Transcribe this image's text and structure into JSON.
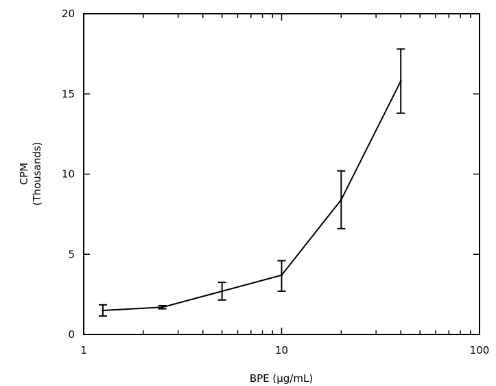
{
  "chart_data": {
    "type": "line",
    "xlabel": "BPE (µg/mL)",
    "ylabel": [
      "CPM",
      "(Thousands)"
    ],
    "xscale": "log",
    "xlim": [
      1,
      100
    ],
    "ylim": [
      0,
      20
    ],
    "x_ticks": [
      1,
      10,
      100
    ],
    "x_tick_labels": [
      "1",
      "10",
      "100"
    ],
    "y_ticks": [
      0,
      5,
      10,
      15,
      20
    ],
    "y_tick_labels": [
      "0",
      "5",
      "10",
      "15",
      "20"
    ],
    "grid": false,
    "legend": "none",
    "series": [
      {
        "x": [
          1.25,
          2.5,
          5,
          10,
          20,
          40
        ],
        "y": [
          1.5,
          1.7,
          2.7,
          3.7,
          8.4,
          15.8
        ],
        "error_low": [
          1.15,
          1.6,
          2.15,
          2.7,
          6.6,
          13.8
        ],
        "error_high": [
          1.85,
          1.8,
          3.25,
          4.6,
          10.2,
          17.8
        ]
      }
    ]
  }
}
